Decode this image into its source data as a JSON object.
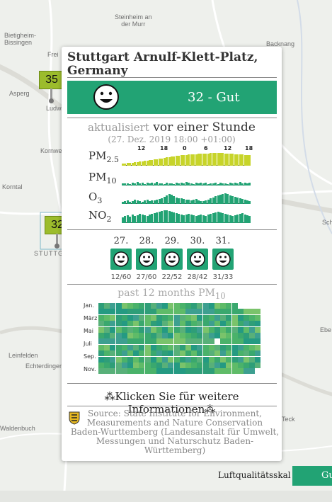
{
  "map": {
    "places": [
      {
        "name": "Steinheim an der Murr",
        "lines": [
          "Steinheim an",
          "der Murr"
        ]
      },
      {
        "name": "Bietigheim-Bissingen",
        "lines": [
          "Bietigheim-",
          "Bissingen"
        ]
      },
      {
        "name": "Backnang",
        "lines": [
          "Backnang"
        ]
      },
      {
        "name": "Asperg",
        "lines": [
          "Asperg"
        ]
      },
      {
        "name": "Kornwestheim",
        "lines": [
          "Kornwestheim"
        ]
      },
      {
        "name": "Korntal",
        "lines": [
          "Korntal"
        ]
      },
      {
        "name": "Stuttgart",
        "lines": [
          "STUTTGART"
        ]
      },
      {
        "name": "Leinfelden",
        "lines": [
          "Leinfelden"
        ]
      },
      {
        "name": "Echterdingen",
        "lines": [
          "Echterdingen"
        ]
      },
      {
        "name": "Waldenbuch",
        "lines": [
          "Waldenbuch"
        ]
      },
      {
        "name": "Teck",
        "lines": [
          "Teck"
        ]
      },
      {
        "name": "Ebe",
        "lines": [
          "Ebe"
        ]
      },
      {
        "name": "Sch",
        "lines": [
          "Sch"
        ]
      },
      {
        "name": "Freiberg partial",
        "lines": [
          "Frei"
        ]
      },
      {
        "name": "Ludwigsburg partial",
        "lines": [
          "Ludw"
        ]
      }
    ],
    "markers": [
      "35",
      "32"
    ]
  },
  "popup": {
    "title": "Stuttgart Arnulf-Klett-Platz, Germany",
    "aqi_value": "32 - Gut",
    "aqi_color": "#22a374",
    "updated_light": "aktualisiert",
    "updated_rest": "vor einer Stunde",
    "updated_date": "(27. Dez. 2019 18:00 +01:00)",
    "hour_labels": [
      "12",
      "18",
      "0",
      "6",
      "12",
      "18"
    ],
    "pollutants": [
      {
        "name": "PM",
        "sub": "2.5",
        "color": "#c7d42a",
        "values": [
          3,
          3,
          4,
          4,
          4,
          5,
          5,
          6,
          6,
          7,
          7,
          8,
          8,
          9,
          9,
          10,
          10,
          11,
          12,
          12,
          13,
          13,
          14,
          14,
          15,
          15,
          15,
          16,
          16,
          16,
          16,
          17,
          17,
          17,
          17,
          17,
          18,
          18,
          18,
          18,
          18,
          18,
          17,
          17,
          17,
          17,
          16,
          16,
          16,
          16,
          15,
          15,
          15
        ]
      },
      {
        "name": "PM",
        "sub": "10",
        "color": "#22a374",
        "values": [
          3,
          3,
          3,
          2,
          4,
          3,
          5,
          3,
          4,
          2,
          4,
          3,
          4,
          3,
          5,
          3,
          3,
          2,
          4,
          3,
          3,
          2,
          4,
          3,
          4,
          3,
          5,
          4,
          3,
          2,
          4,
          3,
          4,
          3,
          4,
          2,
          3,
          3,
          4,
          2,
          4,
          3,
          3,
          2,
          4,
          3,
          4,
          3,
          5,
          3,
          4,
          3,
          4
        ]
      },
      {
        "name": "O",
        "sub": "3",
        "color": "#22a374",
        "values": [
          3,
          4,
          5,
          3,
          4,
          6,
          5,
          4,
          3,
          5,
          6,
          4,
          5,
          5,
          6,
          7,
          8,
          10,
          12,
          14,
          13,
          11,
          9,
          8,
          8,
          7,
          6,
          6,
          5,
          6,
          7,
          5,
          4,
          4,
          5,
          6,
          8,
          9,
          11,
          12,
          13,
          14,
          15,
          14,
          12,
          11,
          10,
          9,
          8,
          7,
          6,
          5,
          4
        ]
      },
      {
        "name": "NO",
        "sub": "2",
        "color": "#22a374",
        "values": [
          8,
          10,
          11,
          9,
          12,
          10,
          11,
          13,
          12,
          11,
          10,
          12,
          13,
          14,
          15,
          16,
          17,
          18,
          18,
          17,
          16,
          15,
          14,
          13,
          12,
          11,
          12,
          13,
          12,
          11,
          10,
          11,
          12,
          11,
          10,
          12,
          13,
          14,
          15,
          16,
          15,
          14,
          13,
          12,
          11,
          10,
          11,
          12,
          13,
          14,
          12,
          11,
          10
        ]
      }
    ],
    "forecast": [
      {
        "day": "27.",
        "minmax": "12/60"
      },
      {
        "day": "28.",
        "minmax": "27/60"
      },
      {
        "day": "29.",
        "minmax": "22/52"
      },
      {
        "day": "30.",
        "minmax": "28/42"
      },
      {
        "day": "31.",
        "minmax": "31/33"
      }
    ],
    "history_title_prefix": "past 12 months PM",
    "history_title_sub": "10",
    "months": [
      "Jan.",
      "März",
      "Mai",
      "Juli",
      "Sep.",
      "Nov."
    ],
    "more_info": "Klicken Sie für weitere Informationen",
    "source_lines": [
      "Source: State Institute for Environment,",
      "Measurements and Nature Conservation",
      "Baden-Wurttemberg (Landesanstalt für Umwelt,",
      "Messungen und Naturschutz Baden-",
      "Württemberg)"
    ]
  },
  "scale": {
    "label": "Luftqualitätsskal",
    "first_level": "Gu"
  }
}
